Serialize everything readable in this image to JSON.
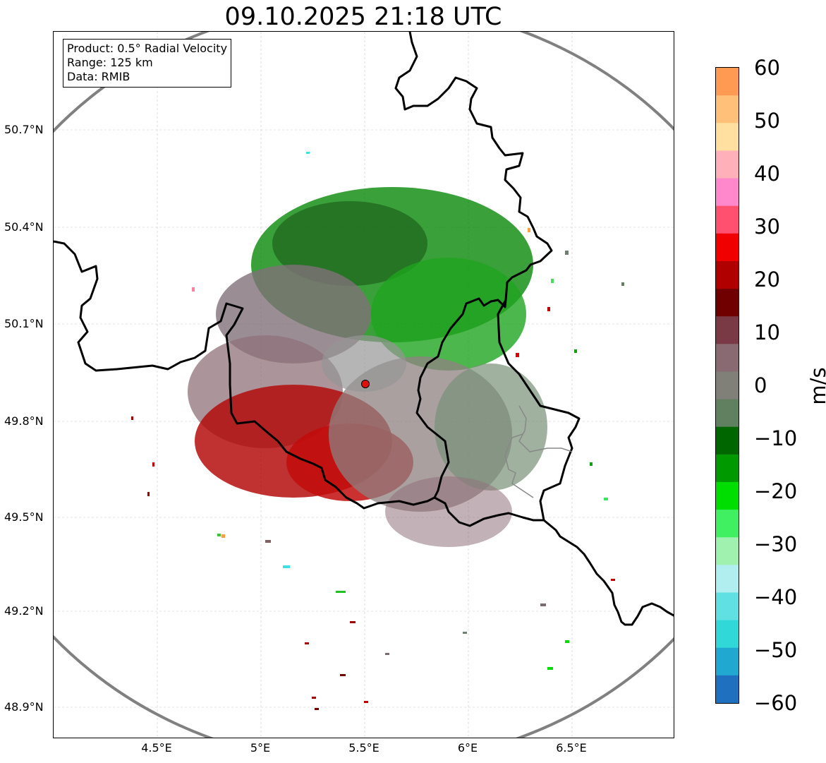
{
  "title": "09.10.2025 21:18 UTC",
  "info": {
    "product": "Product: 0.5° Radial Velocity",
    "range": "Range: 125 km",
    "data": "Data: RMIB"
  },
  "lat_ticks": [
    "50.7°N",
    "50.4°N",
    "50.1°N",
    "49.8°N",
    "49.5°N",
    "49.2°N",
    "48.9°N"
  ],
  "lon_ticks": [
    "4.5°E",
    "5°E",
    "5.5°E",
    "6°E",
    "6.5°E"
  ],
  "colorbar": {
    "label": "m/s",
    "ticks": [
      "60",
      "50",
      "40",
      "30",
      "20",
      "10",
      "0",
      "−10",
      "−20",
      "−30",
      "−40",
      "−50",
      "−60"
    ],
    "colors": [
      "#ff9a52",
      "#ffc07a",
      "#ffe0a0",
      "#ffb0b8",
      "#ff88cc",
      "#ff5070",
      "#f00000",
      "#b00000",
      "#700000",
      "#7a3a45",
      "#8a6a72",
      "#808078",
      "#608060",
      "#006600",
      "#009900",
      "#00dd00",
      "#40f060",
      "#a0f0b0",
      "#b0eef0",
      "#60e0e0",
      "#30d8d8",
      "#20a8d0",
      "#2070c0"
    ]
  },
  "radar": {
    "site": "radar-site",
    "site_color": "#e01010"
  },
  "colors": {
    "ring": "#808080",
    "border": "#000000"
  }
}
